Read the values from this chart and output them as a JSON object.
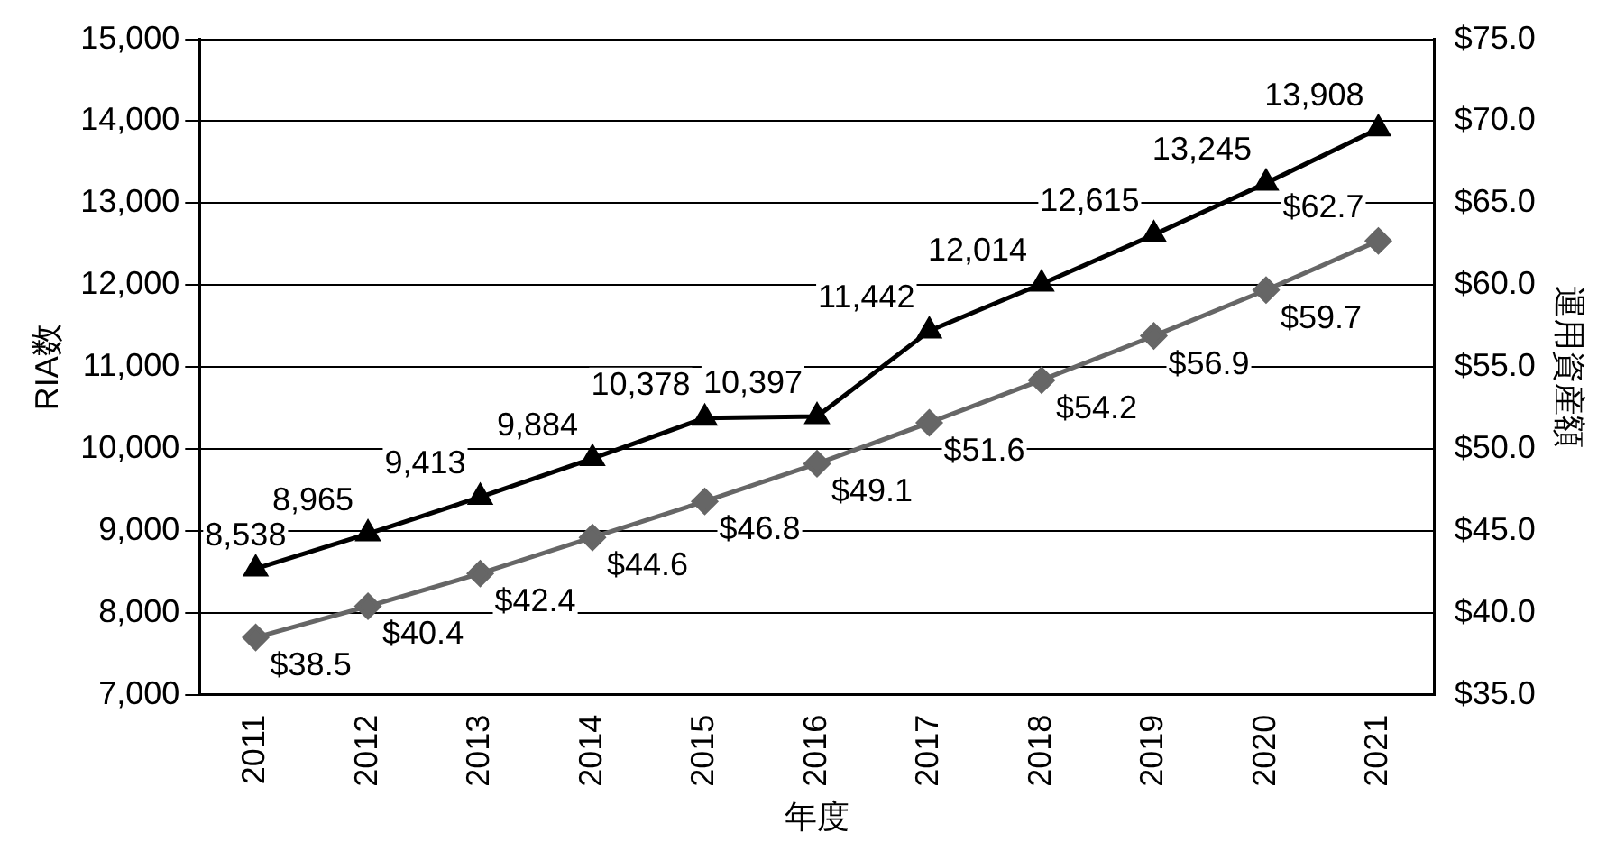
{
  "chart_data": {
    "type": "line",
    "xlabel": "年度",
    "ylabel": "RIA数",
    "y2label": "運用資産額",
    "categories": [
      "2011",
      "2012",
      "2013",
      "2014",
      "2015",
      "2016",
      "2017",
      "2018",
      "2019",
      "2020",
      "2021"
    ],
    "series": [
      {
        "color": "#000000",
        "marker": "triangle",
        "values": [
          8538,
          8965,
          9413,
          9884,
          10378,
          10397,
          11442,
          12014,
          12615,
          13245,
          13908
        ],
        "value_labels": [
          "8,538",
          "8,965",
          "9,413",
          "9,884",
          "10,378",
          "10,397",
          "11,442",
          "12,014",
          "12,615",
          "13,245",
          "13,908"
        ]
      },
      {
        "color": "#666666",
        "marker": "diamond",
        "axis": "y2",
        "values": [
          38.5,
          40.4,
          42.4,
          44.6,
          46.8,
          49.1,
          51.6,
          54.2,
          56.9,
          59.7,
          62.7
        ],
        "value_labels": [
          "$38.5",
          "$40.4",
          "$42.4",
          "$44.6",
          "$46.8",
          "$49.1",
          "$51.6",
          "$54.2",
          "$56.9",
          "$59.7",
          "$62.7"
        ]
      }
    ],
    "ylim": [
      7000,
      15000
    ],
    "yticks": [
      {
        "value": 7000,
        "label": "7,000"
      },
      {
        "value": 8000,
        "label": "8,000"
      },
      {
        "value": 9000,
        "label": "9,000"
      },
      {
        "value": 10000,
        "label": "10,000"
      },
      {
        "value": 11000,
        "label": "11,000"
      },
      {
        "value": 12000,
        "label": "12,000"
      },
      {
        "value": 13000,
        "label": "13,000"
      },
      {
        "value": 14000,
        "label": "14,000"
      },
      {
        "value": 15000,
        "label": "15,000"
      }
    ],
    "y2lim": [
      35,
      75
    ],
    "y2ticks": [
      {
        "value": 35,
        "label": "$35.0"
      },
      {
        "value": 40,
        "label": "$40.0"
      },
      {
        "value": 45,
        "label": "$45.0"
      },
      {
        "value": 50,
        "label": "$50.0"
      },
      {
        "value": 55,
        "label": "$55.0"
      },
      {
        "value": 60,
        "label": "$60.0"
      },
      {
        "value": 65,
        "label": "$65.0"
      },
      {
        "value": 70,
        "label": "$70.0"
      },
      {
        "value": 75,
        "label": "$75.0"
      }
    ],
    "grid": "y",
    "legend": false
  }
}
